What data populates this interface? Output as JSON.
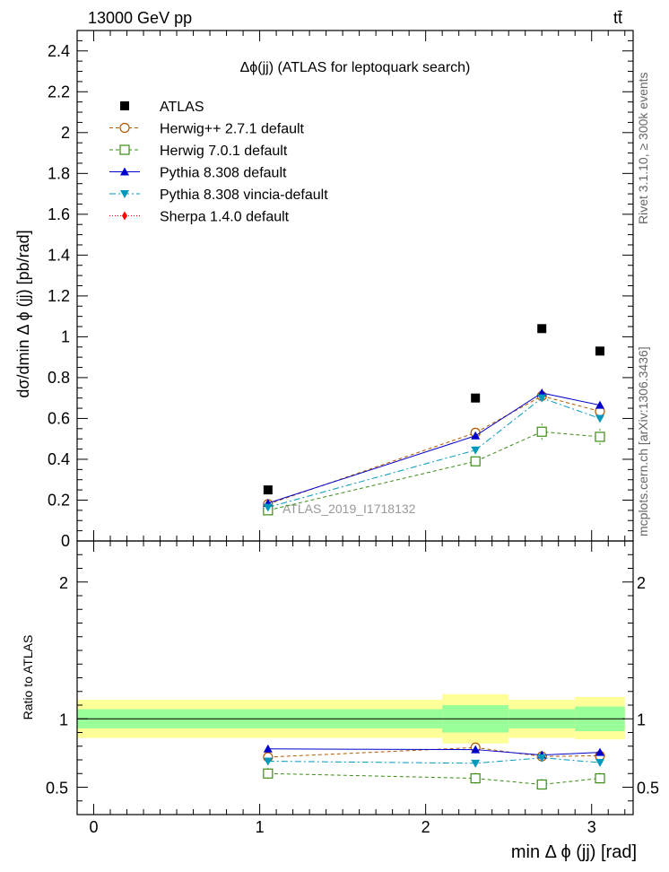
{
  "header": {
    "energy_label": "13000 GeV pp",
    "process_label": "tt̄",
    "side_label_rivet": "Rivet 3.1.10, ≥ 300k events",
    "side_label_mcplots": "mcplots.cern.ch [arXiv:1306.3436]",
    "watermark": "ATLAS_2019_I1718132"
  },
  "chart_data": [
    {
      "type": "scatter",
      "panel": "main",
      "title": "Δϕ(jj) (ATLAS for leptoquark search)",
      "ylabel": "dσ/dmin Δ ϕ (jj) [pb/rad]",
      "xlabel": "",
      "xlim": [
        -0.1,
        3.25
      ],
      "ylim": [
        0,
        2.5
      ],
      "yticks": [
        0.2,
        0.4,
        0.6,
        0.8,
        1,
        1.2,
        1.4,
        1.6,
        1.8,
        2,
        2.2,
        2.4
      ],
      "ytick_labels": [
        "0.2",
        "0.4",
        "0.6",
        "0.8",
        "1",
        "1.2",
        "1.4",
        "1.6",
        "1.8",
        "2",
        "2.2",
        "2.4"
      ],
      "ytick_zero_label": "0",
      "legend_position": "top-left",
      "x": [
        1.05,
        2.3,
        2.7,
        3.05
      ],
      "series": [
        {
          "name": "ATLAS",
          "color": "#000000",
          "marker": "square",
          "line": "none",
          "values": [
            0.25,
            0.7,
            1.04,
            0.93
          ],
          "errors": [
            0,
            0,
            0,
            0
          ]
        },
        {
          "name": "Herwig++ 2.7.1 default",
          "color": "#b35900",
          "marker": "open-circle",
          "line": "dashed",
          "values": [
            0.18,
            0.53,
            0.71,
            0.635
          ],
          "errors": [
            0.01,
            0.015,
            0.02,
            0.02
          ]
        },
        {
          "name": "Herwig 7.0.1 default",
          "color": "#3c8c14",
          "marker": "open-square",
          "line": "dashed",
          "values": [
            0.15,
            0.39,
            0.535,
            0.51
          ],
          "errors": [
            0.01,
            0.02,
            0.04,
            0.04
          ]
        },
        {
          "name": "Pythia 8.308 default",
          "color": "#0000cc",
          "marker": "triangle-up",
          "line": "solid",
          "values": [
            0.185,
            0.515,
            0.725,
            0.665
          ],
          "errors": [
            0.005,
            0.01,
            0.015,
            0.015
          ]
        },
        {
          "name": "Pythia 8.308 vincia-default",
          "color": "#0099bb",
          "marker": "triangle-down",
          "line": "dashdot",
          "values": [
            0.165,
            0.445,
            0.7,
            0.6
          ],
          "errors": [
            0.005,
            0.01,
            0.015,
            0.015
          ]
        },
        {
          "name": "Sherpa 1.4.0 default",
          "color": "#ff0000",
          "marker": "diamond",
          "line": "dotted",
          "values": [],
          "errors": []
        }
      ]
    },
    {
      "type": "scatter",
      "panel": "ratio",
      "title": "",
      "ylabel": "Ratio to ATLAS",
      "xlabel": "min Δ ϕ (jj) [rad]",
      "xlim": [
        -0.1,
        3.25
      ],
      "ylim": [
        0.3,
        2.3
      ],
      "xticks": [
        0,
        1,
        2,
        3
      ],
      "xtick_labels": [
        "0",
        "1",
        "2",
        "3"
      ],
      "yticks": [
        0.5,
        1,
        2
      ],
      "ytick_labels": [
        "0.5",
        "1",
        "2"
      ],
      "bands": [
        {
          "x_low": -0.1,
          "x_high": 2.1,
          "inner_low": 0.93,
          "inner_high": 1.07,
          "outer_low": 0.86,
          "outer_high": 1.14
        },
        {
          "x_low": 2.1,
          "x_high": 2.5,
          "inner_low": 0.9,
          "inner_high": 1.1,
          "outer_low": 0.82,
          "outer_high": 1.18
        },
        {
          "x_low": 2.5,
          "x_high": 2.9,
          "inner_low": 0.93,
          "inner_high": 1.07,
          "outer_low": 0.86,
          "outer_high": 1.14
        },
        {
          "x_low": 2.9,
          "x_high": 3.2,
          "inner_low": 0.91,
          "inner_high": 1.09,
          "outer_low": 0.85,
          "outer_high": 1.16
        }
      ],
      "band_colors": {
        "inner": "#99ff99",
        "outer": "#ffff99"
      },
      "x": [
        1.05,
        2.3,
        2.7,
        3.05
      ],
      "series": [
        {
          "name": "Herwig++ 2.7.1 default",
          "color": "#b35900",
          "marker": "open-circle",
          "line": "dashed",
          "values": [
            0.72,
            0.79,
            0.725,
            0.73
          ],
          "errors": [
            0.02,
            0.02,
            0.02,
            0.02
          ]
        },
        {
          "name": "Herwig 7.0.1 default",
          "color": "#3c8c14",
          "marker": "open-square",
          "line": "dashed",
          "values": [
            0.6,
            0.565,
            0.52,
            0.565
          ],
          "errors": [
            0.04,
            0.04,
            0.04,
            0.04
          ]
        },
        {
          "name": "Pythia 8.308 default",
          "color": "#0000cc",
          "marker": "triangle-up",
          "line": "solid",
          "values": [
            0.78,
            0.775,
            0.735,
            0.755
          ],
          "errors": [
            0.01,
            0.015,
            0.02,
            0.02
          ]
        },
        {
          "name": "Pythia 8.308 vincia-default",
          "color": "#0099bb",
          "marker": "triangle-down",
          "line": "dashdot",
          "values": [
            0.69,
            0.675,
            0.715,
            0.68
          ],
          "errors": [
            0.01,
            0.015,
            0.02,
            0.02
          ]
        }
      ]
    }
  ]
}
